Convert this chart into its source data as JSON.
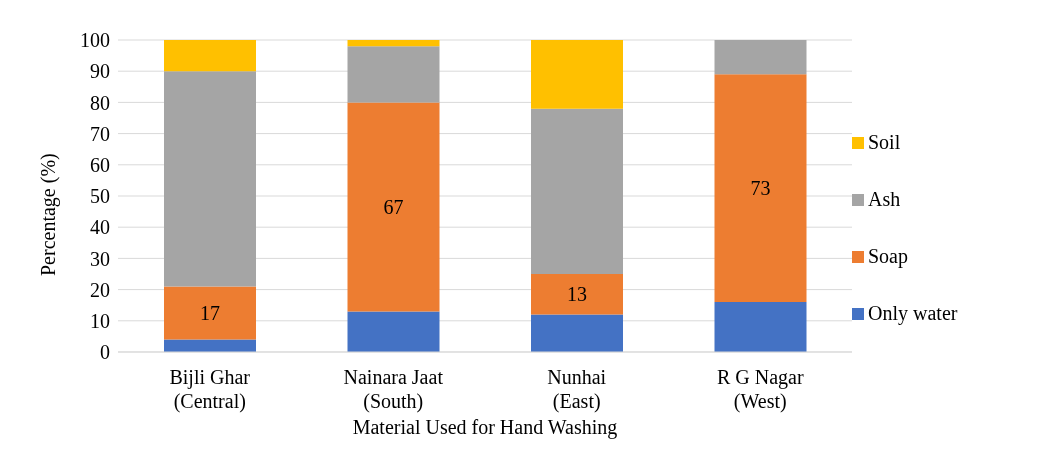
{
  "chart_data": {
    "type": "bar",
    "stacked": true,
    "xlabel": "Material Used for Hand Washing",
    "ylabel": "Percentage (%)",
    "categories": [
      "Bijli Ghar (Central)",
      "Nainara Jaat (South)",
      "Nunhai (East)",
      "R G Nagar (West)"
    ],
    "series": [
      {
        "name": "Only water",
        "color": "#4472c4",
        "values": [
          4,
          13,
          12,
          16
        ]
      },
      {
        "name": "Soap",
        "color": "#ed7d31",
        "values": [
          17,
          67,
          13,
          73
        ],
        "value_labels": [
          "17",
          "67",
          "13",
          "73"
        ]
      },
      {
        "name": "Ash",
        "color": "#a5a5a5",
        "values": [
          69,
          18,
          53,
          11
        ]
      },
      {
        "name": "Soil",
        "color": "#ffc000",
        "values": [
          10,
          2,
          22,
          0
        ]
      }
    ],
    "ylim": [
      0,
      100
    ],
    "yticks": [
      0,
      10,
      20,
      30,
      40,
      50,
      60,
      70,
      80,
      90,
      100
    ],
    "grid": "y",
    "legend": "right"
  }
}
